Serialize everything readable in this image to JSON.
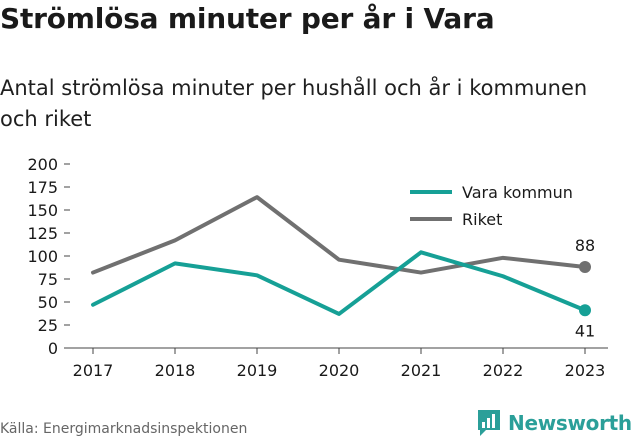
{
  "header": {
    "title": "Strömlösa minuter per år i Vara",
    "subtitle": "Antal strömlösa minuter per hushåll och år i kommunen och riket"
  },
  "footer": {
    "source": "Källa: Energimarknadsinspektionen",
    "brand": "Newsworthy"
  },
  "chart_data": {
    "type": "line",
    "x": [
      "2017",
      "2018",
      "2019",
      "2020",
      "2021",
      "2022",
      "2023"
    ],
    "ylim": [
      0,
      200
    ],
    "yticks": [
      0,
      25,
      50,
      75,
      100,
      125,
      150,
      175,
      200
    ],
    "grid": false,
    "legend_position": "top-right",
    "series": [
      {
        "name": "Vara kommun",
        "color": "#16a096",
        "values": [
          47,
          92,
          79,
          37,
          104,
          78,
          41
        ],
        "end_label": "41"
      },
      {
        "name": "Riket",
        "color": "#707070",
        "values": [
          82,
          117,
          164,
          96,
          82,
          98,
          88
        ],
        "end_label": "88"
      }
    ]
  }
}
